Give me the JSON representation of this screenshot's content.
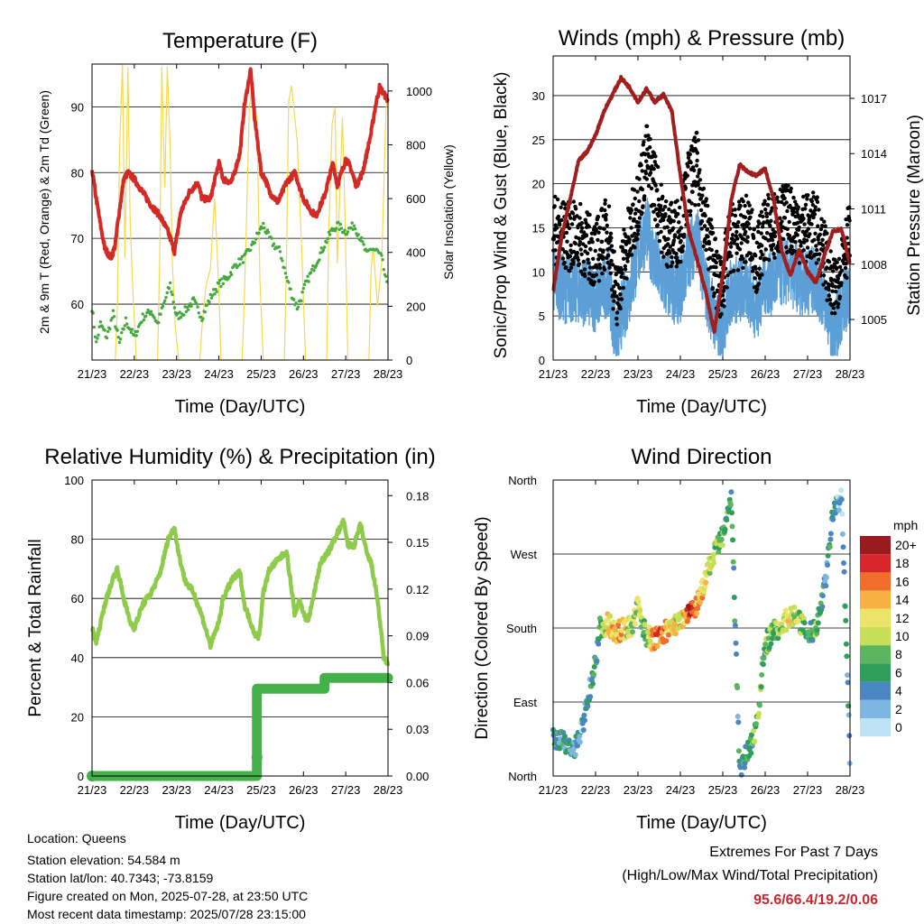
{
  "x_ticks": [
    "21/23",
    "22/23",
    "23/23",
    "24/23",
    "25/23",
    "26/23",
    "27/23",
    "28/23"
  ],
  "x_title": "Time (Day/UTC)",
  "colors": {
    "temp": "#d42a26",
    "dew": "#44aa3c",
    "solar": "#f5d94e",
    "wind": "#5b9fd6",
    "gust": "#000000",
    "pressure": "#a01e1e",
    "rh": "#8fcb4a",
    "precip": "#44b04a"
  },
  "chart_data": [
    {
      "type": "line",
      "title": "Temperature (F)",
      "xlabel": "Time (Day/UTC)",
      "ylabel": "2m & 9m T (Red, Orange) & 2m Td (Green)",
      "y2label": "Solar Insolation (Yellow)",
      "ylim": [
        51.5,
        96.5
      ],
      "y2lim": [
        0,
        1100
      ],
      "yticks": [
        60,
        70,
        80,
        90
      ],
      "y2ticks": [
        0,
        200,
        400,
        600,
        800,
        1000
      ],
      "x_days": [
        0,
        7
      ],
      "series": [
        {
          "name": "2m T (Red)",
          "color": "#d42a26",
          "axis": "left",
          "x": [
            0,
            0.1,
            0.2,
            0.3,
            0.45,
            0.55,
            0.6,
            0.75,
            0.85,
            1.0,
            1.2,
            1.4,
            1.6,
            1.8,
            1.95,
            2.1,
            2.3,
            2.5,
            2.6,
            2.8,
            3.0,
            3.1,
            3.3,
            3.5,
            3.6,
            3.75,
            3.85,
            3.95,
            4.0,
            4.1,
            4.2,
            4.4,
            4.6,
            4.8,
            5.0,
            5.2,
            5.3,
            5.4,
            5.5,
            5.6,
            5.7,
            5.8,
            6.0,
            6.1,
            6.25,
            6.4,
            6.6,
            6.7,
            6.8,
            6.9,
            7.0
          ],
          "y": [
            80.5,
            76,
            72,
            68.5,
            67,
            69,
            72,
            79,
            80,
            79,
            77,
            75,
            73.5,
            71,
            68,
            74,
            77,
            78.5,
            76,
            76,
            81.5,
            79,
            78.5,
            83,
            90,
            95.6,
            88,
            83,
            80,
            79,
            77,
            75.5,
            78.5,
            80,
            76,
            74,
            73.5,
            75,
            76.5,
            79,
            81.5,
            78,
            82,
            81,
            78,
            80,
            86,
            90,
            93,
            92,
            91
          ]
        },
        {
          "name": "2m Td (Green)",
          "color": "#44aa3c",
          "axis": "left",
          "x": [
            0,
            0.1,
            0.2,
            0.35,
            0.5,
            0.65,
            0.8,
            1.0,
            1.2,
            1.4,
            1.55,
            1.7,
            1.85,
            2.0,
            2.2,
            2.4,
            2.6,
            2.8,
            3.0,
            3.2,
            3.4,
            3.6,
            3.8,
            3.95,
            4.05,
            4.2,
            4.3,
            4.45,
            4.6,
            4.75,
            4.85,
            4.95,
            5.05,
            5.2,
            5.35,
            5.5,
            5.65,
            5.8,
            6.0,
            6.2,
            6.35,
            6.5,
            6.6,
            6.75,
            6.85,
            7.0
          ],
          "y": [
            59.5,
            54,
            57,
            55,
            58.5,
            54,
            57.5,
            55,
            58,
            59,
            57,
            60,
            63,
            58,
            59,
            60.5,
            58,
            61,
            63,
            64,
            66,
            67,
            69,
            71,
            72,
            70,
            69,
            68,
            64,
            61,
            59.5,
            61,
            63,
            65,
            67,
            69,
            71,
            72,
            71,
            72,
            70,
            67.5,
            68.5,
            68,
            67,
            62
          ]
        },
        {
          "name": "Solar Insolation (Yellow)",
          "color": "#f5d94e",
          "axis": "right",
          "x": [
            0.55,
            0.6,
            0.65,
            0.72,
            0.78,
            0.85,
            0.9,
            0.97,
            1.05,
            1.55,
            1.6,
            1.65,
            1.72,
            1.78,
            1.85,
            1.9,
            1.97,
            2.05,
            2.55,
            2.6,
            2.7,
            2.8,
            2.9,
            3.0,
            3.05,
            3.55,
            3.6,
            3.65,
            3.72,
            3.78,
            3.85,
            3.9,
            3.97,
            4.05,
            4.55,
            4.6,
            4.65,
            4.72,
            4.78,
            4.85,
            4.9,
            4.97,
            5.05,
            5.55,
            5.6,
            5.68,
            5.75,
            5.8,
            5.86,
            5.92,
            5.98,
            6.05,
            6.55,
            6.6,
            6.65,
            6.75,
            6.85,
            6.95,
            7.0
          ],
          "y": [
            0,
            200,
            780,
            1100,
            380,
            1090,
            520,
            240,
            0,
            0,
            380,
            1090,
            640,
            1090,
            780,
            360,
            120,
            0,
            0,
            120,
            280,
            340,
            600,
            260,
            0,
            0,
            220,
            500,
            940,
            1010,
            940,
            900,
            300,
            0,
            0,
            380,
            960,
            1020,
            920,
            820,
            640,
            360,
            0,
            0,
            480,
            880,
            940,
            360,
            620,
            900,
            560,
            0,
            0,
            340,
            420,
            200,
            360,
            920,
            1000
          ]
        }
      ]
    },
    {
      "type": "line",
      "title": "Winds (mph) & Pressure (mb)",
      "xlabel": "Time (Day/UTC)",
      "ylabel": "Sonic/Prop Wind & Gust (Blue, Black)",
      "y2label": "Station Pressure (Maroon)",
      "ylim": [
        0,
        34.5
      ],
      "y2lim": [
        1002.8,
        1019.3
      ],
      "yticks": [
        0,
        5,
        10,
        15,
        20,
        25,
        30
      ],
      "y2ticks": [
        1005,
        1008,
        1011,
        1014,
        1017
      ],
      "x_days": [
        0,
        7
      ],
      "series": [
        {
          "name": "Sonic/Prop Wind (Blue)",
          "color": "#5b9fd6",
          "axis": "left",
          "x": [
            0,
            0.3,
            0.6,
            1.0,
            1.3,
            1.5,
            1.6,
            1.8,
            2.0,
            2.2,
            2.4,
            2.6,
            2.8,
            3.0,
            3.2,
            3.4,
            3.6,
            3.8,
            3.9,
            4.0,
            4.2,
            4.4,
            4.6,
            4.8,
            5.0,
            5.2,
            5.4,
            5.6,
            5.8,
            6.0,
            6.2,
            6.4,
            6.5,
            6.6,
            6.8,
            7.0
          ],
          "y": [
            9,
            8,
            8,
            7,
            9,
            2,
            5,
            8,
            12,
            15,
            11,
            9,
            8,
            8,
            12,
            14,
            8,
            5,
            3,
            4,
            8,
            8,
            8,
            6,
            9,
            9,
            10,
            10,
            9,
            9,
            9,
            7,
            5,
            2,
            6,
            8
          ]
        },
        {
          "name": "Gust (Black)",
          "color": "#000000",
          "axis": "left",
          "x": [
            0,
            0.3,
            0.6,
            1.0,
            1.3,
            1.5,
            1.6,
            1.8,
            2.0,
            2.2,
            2.4,
            2.6,
            2.8,
            3.0,
            3.2,
            3.4,
            3.6,
            3.8,
            3.9,
            4.0,
            4.2,
            4.4,
            4.6,
            4.8,
            5.0,
            5.2,
            5.4,
            5.6,
            5.8,
            6.0,
            6.2,
            6.4,
            6.5,
            6.6,
            6.8,
            7.0
          ],
          "y": [
            15,
            14,
            14,
            12,
            15,
            6,
            10,
            14,
            18,
            23,
            20,
            15,
            14,
            15,
            20,
            22,
            15,
            11,
            8,
            9,
            14,
            14,
            15,
            11,
            15,
            15,
            16,
            16,
            15,
            15,
            15,
            12,
            10,
            7,
            12,
            14
          ]
        },
        {
          "name": "Station Pressure (Maroon)",
          "color": "#a01e1e",
          "axis": "right",
          "x": [
            0,
            0.2,
            0.4,
            0.6,
            0.8,
            1.0,
            1.2,
            1.4,
            1.6,
            1.8,
            2.0,
            2.2,
            2.4,
            2.6,
            2.8,
            3.0,
            3.2,
            3.4,
            3.6,
            3.8,
            4.0,
            4.2,
            4.4,
            4.6,
            4.8,
            5.0,
            5.2,
            5.4,
            5.6,
            5.8,
            6.0,
            6.2,
            6.4,
            6.6,
            6.8,
            7.0
          ],
          "y": [
            1006.5,
            1009.5,
            1011.5,
            1013.6,
            1014.1,
            1015.0,
            1016.3,
            1017.2,
            1018.1,
            1017.6,
            1016.8,
            1017.5,
            1016.8,
            1017.2,
            1016.3,
            1012.8,
            1009.8,
            1008.2,
            1006.5,
            1004.3,
            1007.4,
            1011.5,
            1013.4,
            1013.0,
            1012.8,
            1013.2,
            1011.5,
            1008.6,
            1007.4,
            1008.8,
            1007.6,
            1007.0,
            1008.5,
            1009.8,
            1009.9,
            1008.0
          ]
        }
      ]
    },
    {
      "type": "line",
      "title": "Relative Humidity (%) & Precipitation (in)",
      "xlabel": "Time (Day/UTC)",
      "ylabel": "Percent & Total Rainfall",
      "ylim": [
        0,
        100
      ],
      "y2lim": [
        0,
        0.19
      ],
      "yticks": [
        0,
        20,
        40,
        60,
        80,
        100
      ],
      "y2ticks": [
        "0.00",
        "0.03",
        "0.06",
        "0.09",
        "0.12",
        "0.15",
        "0.18"
      ],
      "x_days": [
        0,
        7
      ],
      "series": [
        {
          "name": "Relative Humidity",
          "color": "#8fcb4a",
          "axis": "left",
          "x": [
            0,
            0.1,
            0.3,
            0.5,
            0.6,
            0.75,
            0.9,
            1.0,
            1.2,
            1.4,
            1.6,
            1.8,
            1.95,
            2.05,
            2.2,
            2.4,
            2.6,
            2.8,
            3.0,
            3.1,
            3.3,
            3.5,
            3.6,
            3.75,
            3.85,
            3.95,
            4.05,
            4.2,
            4.4,
            4.6,
            4.8,
            4.9,
            5.0,
            5.1,
            5.2,
            5.4,
            5.6,
            5.8,
            5.95,
            6.05,
            6.2,
            6.35,
            6.5,
            6.6,
            6.75,
            6.9,
            7.0
          ],
          "y": [
            50,
            45,
            58,
            67,
            70,
            60,
            52,
            50,
            58,
            62,
            68,
            80,
            84,
            75,
            66,
            62,
            54,
            44,
            52,
            60,
            66,
            69,
            58,
            52,
            48,
            47,
            62,
            70,
            73,
            76,
            54,
            60,
            55,
            52,
            58,
            72,
            76,
            82,
            86,
            78,
            78,
            85,
            75,
            72,
            60,
            40,
            38
          ]
        },
        {
          "name": "Precipitation",
          "color": "#44b04a",
          "axis": "right",
          "x": [
            0,
            3.9,
            3.9,
            5.5,
            5.5,
            7.0
          ],
          "y": [
            0.0,
            0.0,
            0.056,
            0.056,
            0.063,
            0.063
          ]
        }
      ]
    },
    {
      "type": "scatter",
      "title": "Wind Direction",
      "xlabel": "Time (Day/UTC)",
      "ylabel": "Direction (Colored By Speed)",
      "yticks": [
        "North",
        "East",
        "South",
        "West",
        "North"
      ],
      "ylim": [
        0,
        360
      ],
      "legend": {
        "title": "mph",
        "labels": [
          "0",
          "2",
          "4",
          "6",
          "8",
          "10",
          "12",
          "14",
          "16",
          "18",
          "20+"
        ],
        "colors": [
          "#bee3f5",
          "#7db6e1",
          "#4a86c2",
          "#2e9e5a",
          "#5cb55e",
          "#c7de57",
          "#ece36a",
          "#f7b143",
          "#f06d2b",
          "#d9262a",
          "#9a1b1d"
        ],
        "placement": "right"
      },
      "x_days": [
        0,
        7
      ],
      "series": [
        {
          "name": "direction",
          "x": [
            0.0,
            0.3,
            0.5,
            0.7,
            0.8,
            1.0,
            1.1,
            1.3,
            1.5,
            1.7,
            1.9,
            2.0,
            2.1,
            2.2,
            2.4,
            2.6,
            2.8,
            3.0,
            3.2,
            3.4,
            3.6,
            3.8,
            4.0,
            4.2,
            4.4,
            4.6,
            4.8,
            5.0,
            5.2,
            5.4,
            5.6,
            5.8,
            6.0,
            6.2,
            6.4,
            6.6,
            6.8,
            7.0
          ],
          "y": [
            45,
            40,
            30,
            60,
            90,
            140,
            180,
            185,
            175,
            180,
            185,
            210,
            185,
            170,
            165,
            175,
            180,
            190,
            200,
            210,
            240,
            270,
            290,
            340,
            10,
            30,
            60,
            160,
            175,
            185,
            195,
            190,
            170,
            180,
            230,
            320,
            340,
            20
          ],
          "speed": [
            5,
            5,
            4,
            3,
            4,
            6,
            7,
            12,
            14,
            12,
            10,
            11,
            8,
            9,
            16,
            15,
            12,
            10,
            18,
            14,
            12,
            9,
            8,
            6,
            5,
            6,
            9,
            7,
            8,
            10,
            12,
            9,
            7,
            8,
            5,
            4,
            3,
            4
          ]
        }
      ]
    }
  ],
  "footer": {
    "location": "Location: Queens",
    "elevation": "Station elevation: 54.584 m",
    "latlon": "Station lat/lon: 40.7343; -73.8159",
    "created": "Figure created on Mon, 2025-07-28, at 23:50 UTC",
    "timestamp": "Most recent data timestamp: 2025/07/28 23:15:00"
  },
  "extremes": {
    "title": "Extremes For Past 7 Days",
    "subtitle": "(High/Low/Max Wind/Total Precipitation)",
    "values": "95.6/66.4/19.2/0.06"
  }
}
